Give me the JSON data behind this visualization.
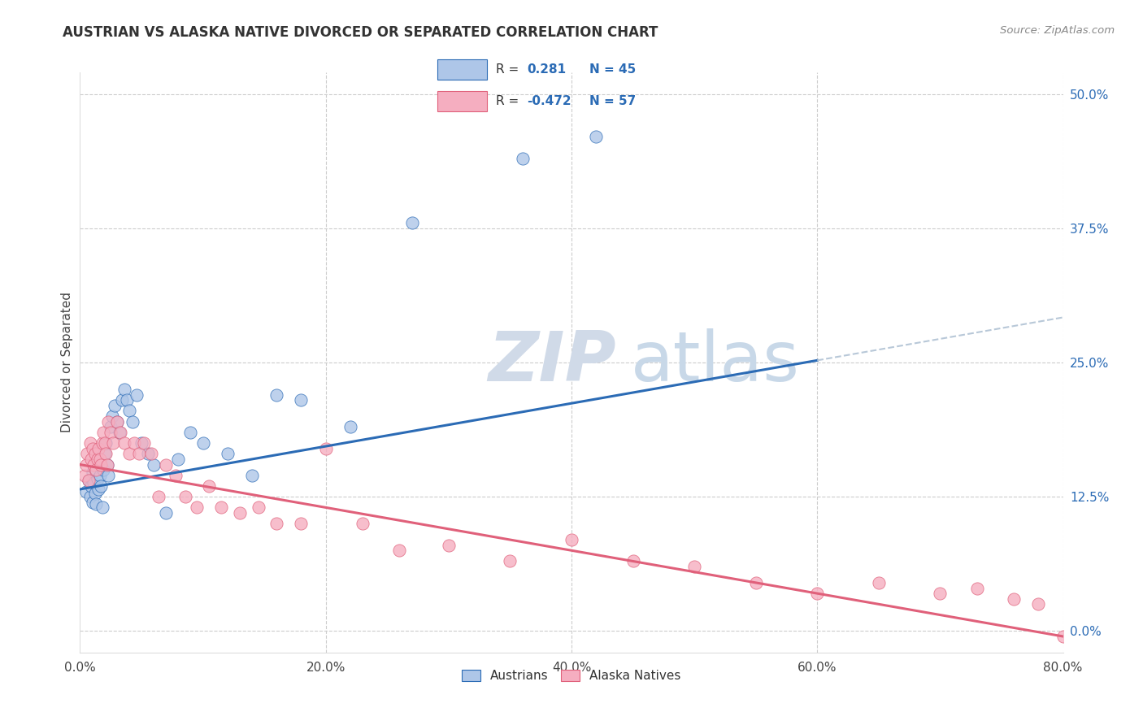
{
  "title": "AUSTRIAN VS ALASKA NATIVE DIVORCED OR SEPARATED CORRELATION CHART",
  "source": "Source: ZipAtlas.com",
  "ylabel": "Divorced or Separated",
  "legend_labels": [
    "Austrians",
    "Alaska Natives"
  ],
  "austrian_R": 0.281,
  "austrian_N": 45,
  "alaskan_R": -0.472,
  "alaskan_N": 57,
  "austrian_color": "#aec6e8",
  "alaskan_color": "#f5aec0",
  "trend_austrian_color": "#2b6bb5",
  "trend_alaskan_color": "#e0607a",
  "trend_extension_color": "#b8c8d8",
  "background_color": "#ffffff",
  "watermark_zip_color": "#d0dae8",
  "watermark_atlas_color": "#c8d8e8",
  "xmin": 0.0,
  "xmax": 0.8,
  "ymin": -0.02,
  "ymax": 0.52,
  "austrian_line_x0": 0.0,
  "austrian_line_y0": 0.132,
  "austrian_line_x1": 0.6,
  "austrian_line_y1": 0.252,
  "austrian_line_ext_x1": 0.8,
  "austrian_line_ext_y1": 0.292,
  "alaskan_line_x0": 0.0,
  "alaskan_line_y0": 0.155,
  "alaskan_line_x1": 0.8,
  "alaskan_line_y1": -0.005,
  "austrian_x": [
    0.005,
    0.007,
    0.008,
    0.009,
    0.01,
    0.01,
    0.011,
    0.012,
    0.013,
    0.014,
    0.015,
    0.016,
    0.017,
    0.018,
    0.019,
    0.02,
    0.021,
    0.022,
    0.023,
    0.025,
    0.026,
    0.028,
    0.03,
    0.032,
    0.034,
    0.036,
    0.038,
    0.04,
    0.043,
    0.046,
    0.05,
    0.055,
    0.06,
    0.07,
    0.08,
    0.09,
    0.1,
    0.12,
    0.14,
    0.16,
    0.18,
    0.22,
    0.27,
    0.36,
    0.42
  ],
  "austrian_y": [
    0.13,
    0.14,
    0.125,
    0.135,
    0.12,
    0.148,
    0.138,
    0.128,
    0.118,
    0.142,
    0.132,
    0.145,
    0.135,
    0.115,
    0.15,
    0.165,
    0.175,
    0.155,
    0.145,
    0.19,
    0.2,
    0.21,
    0.195,
    0.185,
    0.215,
    0.225,
    0.215,
    0.205,
    0.195,
    0.22,
    0.175,
    0.165,
    0.155,
    0.11,
    0.16,
    0.185,
    0.175,
    0.165,
    0.145,
    0.22,
    0.215,
    0.19,
    0.38,
    0.44,
    0.46
  ],
  "alaskan_x": [
    0.004,
    0.005,
    0.006,
    0.007,
    0.008,
    0.009,
    0.01,
    0.011,
    0.012,
    0.013,
    0.014,
    0.015,
    0.016,
    0.017,
    0.018,
    0.019,
    0.02,
    0.021,
    0.022,
    0.023,
    0.025,
    0.027,
    0.03,
    0.033,
    0.036,
    0.04,
    0.044,
    0.048,
    0.052,
    0.058,
    0.064,
    0.07,
    0.078,
    0.086,
    0.095,
    0.105,
    0.115,
    0.13,
    0.145,
    0.16,
    0.18,
    0.2,
    0.23,
    0.26,
    0.3,
    0.35,
    0.4,
    0.45,
    0.5,
    0.55,
    0.6,
    0.65,
    0.7,
    0.73,
    0.76,
    0.78,
    0.8
  ],
  "alaskan_y": [
    0.145,
    0.155,
    0.165,
    0.14,
    0.175,
    0.16,
    0.17,
    0.155,
    0.165,
    0.15,
    0.16,
    0.17,
    0.16,
    0.155,
    0.175,
    0.185,
    0.175,
    0.165,
    0.155,
    0.195,
    0.185,
    0.175,
    0.195,
    0.185,
    0.175,
    0.165,
    0.175,
    0.165,
    0.175,
    0.165,
    0.125,
    0.155,
    0.145,
    0.125,
    0.115,
    0.135,
    0.115,
    0.11,
    0.115,
    0.1,
    0.1,
    0.17,
    0.1,
    0.075,
    0.08,
    0.065,
    0.085,
    0.065,
    0.06,
    0.045,
    0.035,
    0.045,
    0.035,
    0.04,
    0.03,
    0.025,
    -0.005
  ]
}
